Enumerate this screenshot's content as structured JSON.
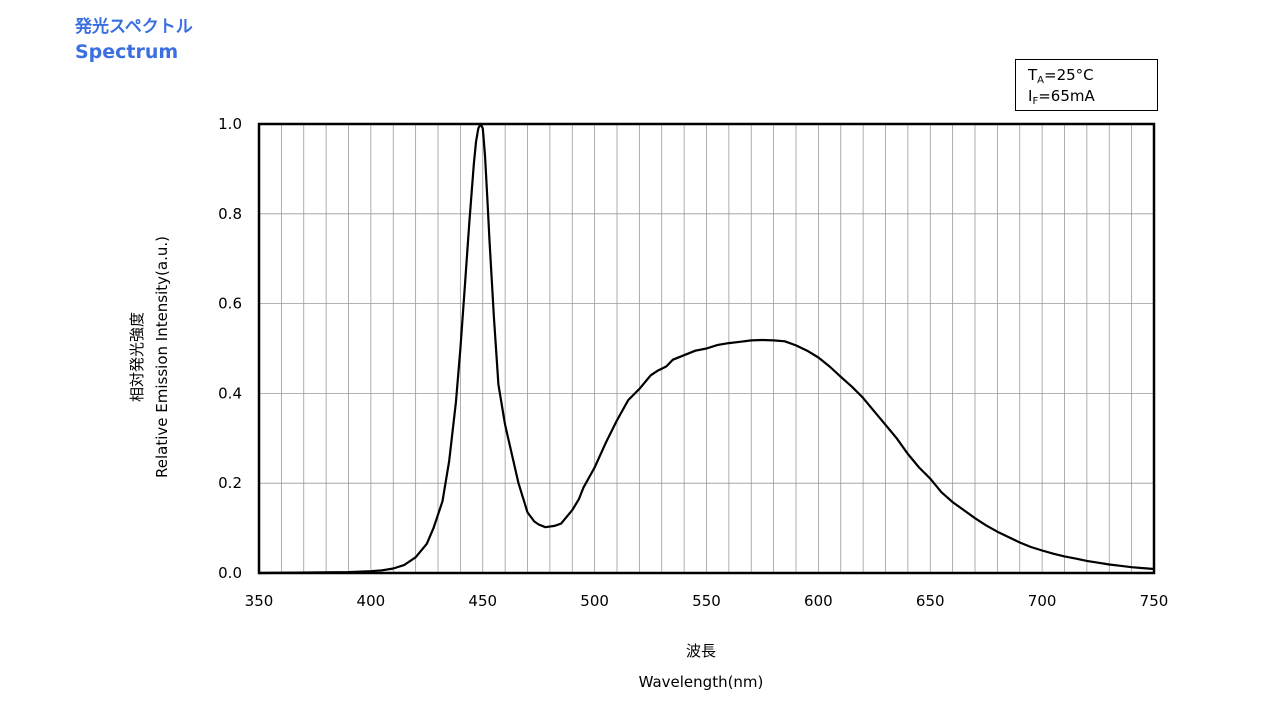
{
  "header": {
    "title_jp": "発光スペクトル",
    "title_en": "Spectrum"
  },
  "conditions": {
    "ta_symbol": "T",
    "ta_sub": "A",
    "ta_value": "=25°C",
    "if_symbol": "I",
    "if_sub": "F",
    "if_value": "=65mA"
  },
  "chart_data": {
    "type": "line",
    "title": "Spectrum",
    "xlabel_jp": "波長",
    "xlabel": "Wavelength(nm)",
    "ylabel_jp": "相対発光強度",
    "ylabel": "Relative Emission Intensity(a.u.)",
    "xlim": [
      350,
      750
    ],
    "ylim": [
      0,
      1.0
    ],
    "x_ticks": [
      350,
      400,
      450,
      500,
      550,
      600,
      650,
      700,
      750
    ],
    "x_tick_labels": [
      "350",
      "400",
      "450",
      "500",
      "550",
      "600",
      "650",
      "700",
      "750"
    ],
    "y_ticks": [
      0,
      0.2,
      0.4,
      0.6,
      0.8,
      1.0
    ],
    "y_tick_labels": [
      "0.0",
      "0.2",
      "0.4",
      "0.6",
      "0.8",
      "1.0"
    ],
    "grid": {
      "x_minor_step": 10,
      "y_major": true
    },
    "line_color": "#000000",
    "series": [
      {
        "x": [
          350,
          390,
          400,
          405,
          410,
          415,
          420,
          425,
          428,
          432,
          435,
          438,
          440,
          442,
          444,
          446,
          447,
          448,
          449,
          450,
          451,
          452,
          453,
          455,
          457,
          460,
          463,
          466,
          470,
          473,
          475,
          478,
          482,
          485,
          490,
          493,
          495,
          500,
          505,
          510,
          515,
          520,
          525,
          528,
          532,
          535,
          540,
          545,
          550,
          555,
          560,
          565,
          570,
          575,
          580,
          585,
          590,
          595,
          600,
          605,
          610,
          615,
          620,
          625,
          630,
          635,
          640,
          645,
          650,
          655,
          660,
          665,
          670,
          675,
          680,
          685,
          690,
          695,
          700,
          705,
          710,
          715,
          720,
          725,
          730,
          735,
          740,
          745,
          750
        ],
        "values": [
          0,
          0.002,
          0.004,
          0.006,
          0.01,
          0.018,
          0.035,
          0.065,
          0.1,
          0.16,
          0.25,
          0.38,
          0.5,
          0.64,
          0.78,
          0.91,
          0.96,
          0.99,
          1.0,
          0.99,
          0.93,
          0.84,
          0.74,
          0.57,
          0.42,
          0.33,
          0.265,
          0.2,
          0.135,
          0.115,
          0.108,
          0.102,
          0.105,
          0.11,
          0.14,
          0.165,
          0.19,
          0.235,
          0.29,
          0.34,
          0.385,
          0.41,
          0.44,
          0.45,
          0.46,
          0.475,
          0.485,
          0.495,
          0.5,
          0.508,
          0.512,
          0.515,
          0.518,
          0.519,
          0.518,
          0.516,
          0.507,
          0.495,
          0.48,
          0.46,
          0.437,
          0.415,
          0.39,
          0.36,
          0.33,
          0.3,
          0.265,
          0.235,
          0.21,
          0.18,
          0.158,
          0.14,
          0.122,
          0.106,
          0.092,
          0.08,
          0.068,
          0.058,
          0.05,
          0.043,
          0.037,
          0.032,
          0.027,
          0.023,
          0.019,
          0.016,
          0.013,
          0.011,
          0.009
        ]
      }
    ]
  }
}
